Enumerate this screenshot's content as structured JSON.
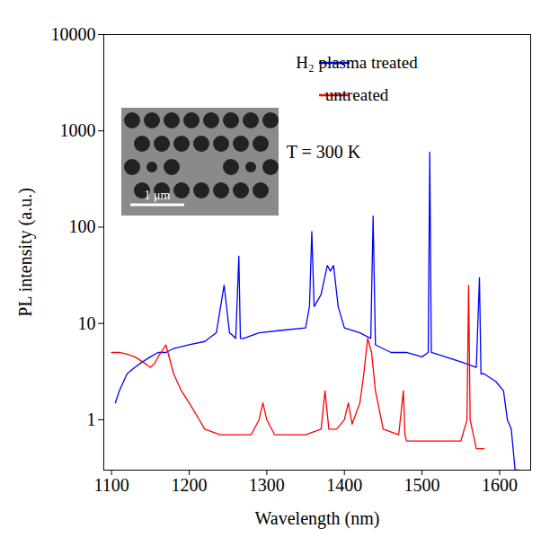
{
  "chart_data": {
    "type": "line",
    "x_label": "Wavelength (nm)",
    "y_label": "PL intensity (a.u.)",
    "log": "y",
    "grid": false,
    "legend": "top-right",
    "xlim": [
      1090,
      1640
    ],
    "xticks": [
      1100,
      1200,
      1300,
      1400,
      1500,
      1600
    ],
    "ylim": [
      0.3,
      10000
    ],
    "yticks": [
      1,
      10,
      100,
      1000,
      10000
    ],
    "annotations": [
      "T = 300 K",
      "1 μm"
    ],
    "series": [
      {
        "name": "H₂ plasma treated",
        "color": "#0000ff",
        "x": [
          1105,
          1110,
          1120,
          1130,
          1140,
          1150,
          1160,
          1170,
          1180,
          1200,
          1220,
          1235,
          1245,
          1252,
          1260,
          1264,
          1266,
          1270,
          1290,
          1320,
          1350,
          1355,
          1358,
          1361,
          1370,
          1378,
          1382,
          1386,
          1392,
          1400,
          1420,
          1434,
          1437,
          1440,
          1460,
          1480,
          1500,
          1508,
          1510,
          1512,
          1530,
          1550,
          1570,
          1574,
          1576,
          1580,
          1595,
          1605,
          1610,
          1615,
          1620,
          1625
        ],
        "values": [
          1.5,
          2,
          3,
          3.5,
          4,
          4.5,
          5,
          5,
          5.5,
          6,
          6.5,
          8,
          25,
          8,
          7,
          50,
          7,
          7,
          8,
          8.5,
          9,
          15,
          90,
          15,
          20,
          40,
          35,
          40,
          15,
          9,
          8,
          7,
          130,
          6,
          5,
          5,
          4.5,
          5,
          600,
          5,
          4.5,
          4,
          3.5,
          30,
          3,
          3,
          2.5,
          2,
          1,
          0.8,
          0.3,
          0.3
        ]
      },
      {
        "name": "untreated",
        "color": "#ff0000",
        "x": [
          1100,
          1110,
          1120,
          1130,
          1140,
          1150,
          1155,
          1160,
          1170,
          1180,
          1190,
          1200,
          1210,
          1220,
          1240,
          1260,
          1280,
          1290,
          1295,
          1300,
          1310,
          1330,
          1350,
          1370,
          1375,
          1380,
          1390,
          1400,
          1405,
          1410,
          1420,
          1425,
          1430,
          1435,
          1440,
          1450,
          1470,
          1476,
          1478,
          1480,
          1500,
          1530,
          1550,
          1558,
          1560,
          1562,
          1570,
          1580
        ],
        "values": [
          5,
          5,
          4.8,
          4.5,
          4,
          3.5,
          3.8,
          4.5,
          6,
          3,
          2,
          1.5,
          1.1,
          0.8,
          0.7,
          0.7,
          0.7,
          1,
          1.5,
          1,
          0.7,
          0.7,
          0.7,
          0.8,
          2,
          0.8,
          0.8,
          1,
          1.5,
          0.9,
          1.5,
          3,
          7,
          5,
          2,
          0.8,
          0.7,
          2,
          0.7,
          0.6,
          0.6,
          0.6,
          0.6,
          1,
          25,
          1,
          0.5,
          0.5
        ]
      }
    ]
  }
}
